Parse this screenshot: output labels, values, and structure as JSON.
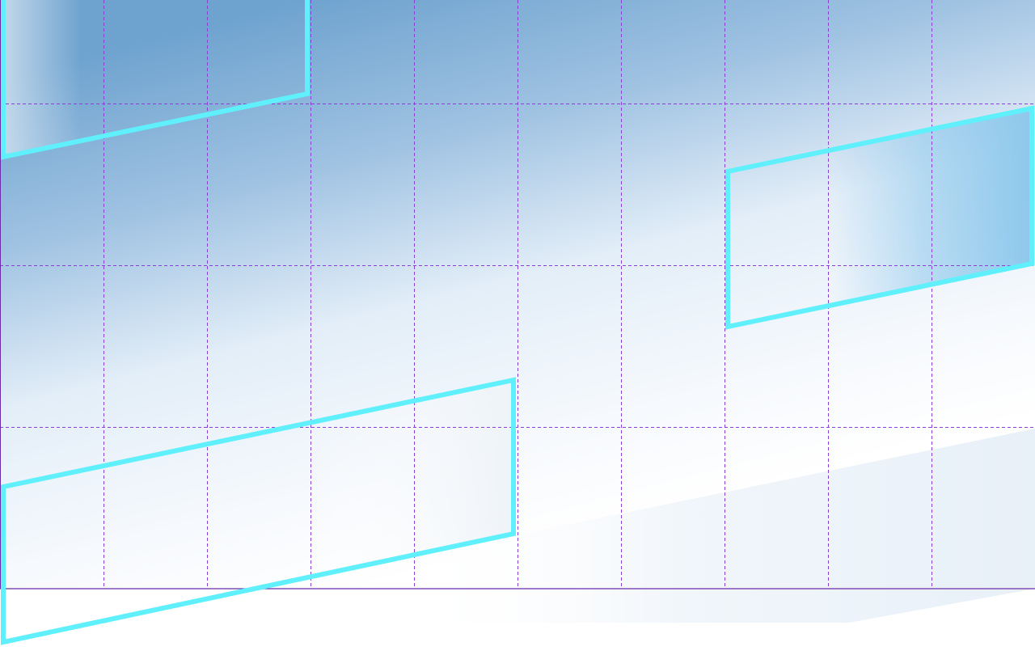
{
  "scene": {
    "background": {
      "top_color": "#6fa3cf",
      "mid_color": "#e3eef8",
      "bottom_color": "#ffffff"
    },
    "grid": {
      "line_color": "#8b3fd6",
      "baseline_color": "#6a2ca8",
      "style": "dashed",
      "columns": 10,
      "rows": 4
    },
    "frames": {
      "stroke_color": "#5ff0fb",
      "fill_color": "#8ec8ec",
      "count": 3
    }
  }
}
